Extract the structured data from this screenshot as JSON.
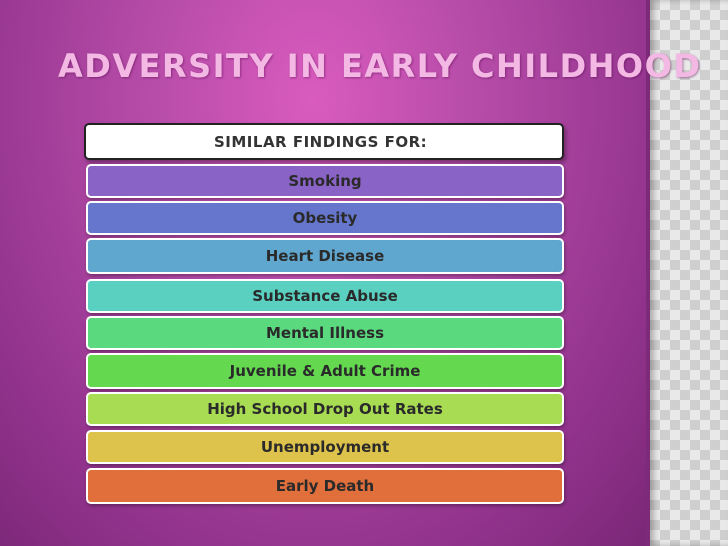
{
  "slide": {
    "title": "ADVERSITY IN EARLY CHILDHOOD",
    "header": "SIMILAR FINDINGS FOR:",
    "items": [
      {
        "label": "Smoking",
        "color": "#8a63c7"
      },
      {
        "label": "Obesity",
        "color": "#6576cc"
      },
      {
        "label": "Heart Disease",
        "color": "#5fa7cf"
      },
      {
        "label": "Substance Abuse",
        "color": "#59d0c0"
      },
      {
        "label": "Mental Illness",
        "color": "#5bd97f"
      },
      {
        "label": "Juvenile & Adult Crime",
        "color": "#64d950"
      },
      {
        "label": "High School Drop Out Rates",
        "color": "#a8dc53"
      },
      {
        "label": "Unemployment",
        "color": "#ddc24b"
      },
      {
        "label": "Early Death",
        "color": "#e06f3c"
      }
    ]
  }
}
